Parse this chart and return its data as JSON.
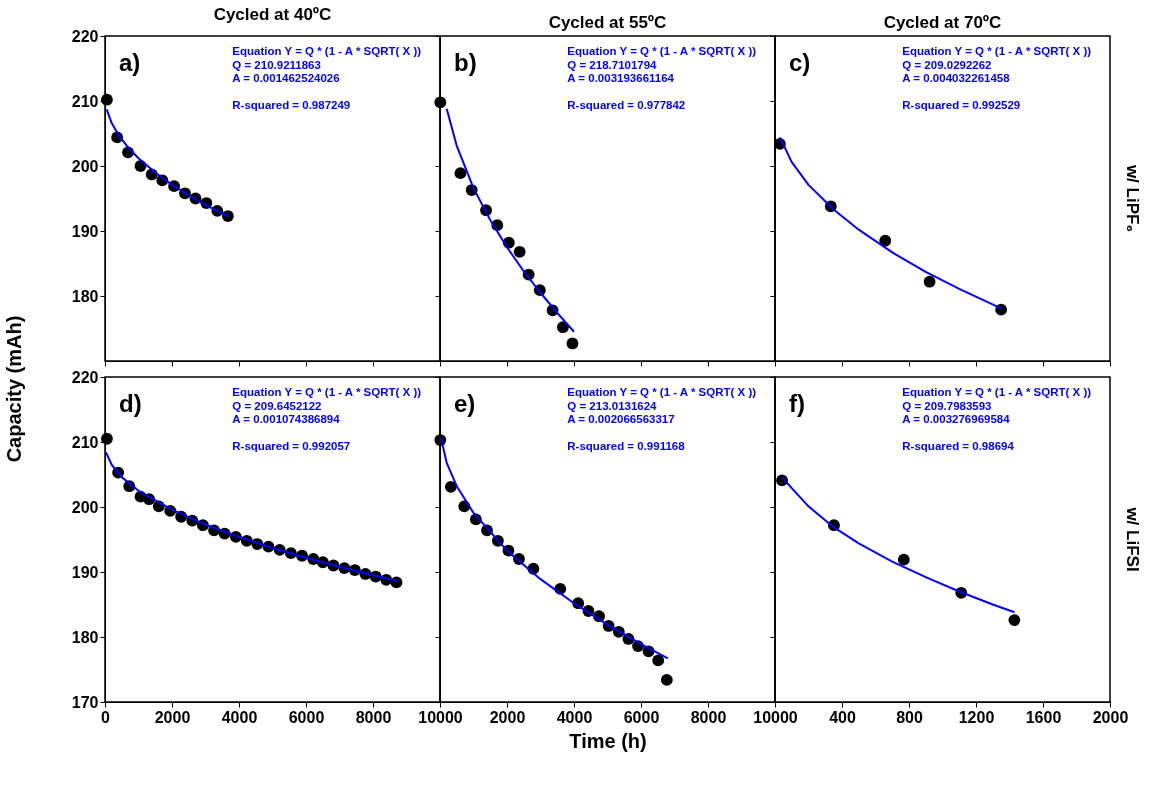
{
  "chart_data": [
    {
      "type": "scatter",
      "title": "Cycled at 40ºC",
      "ylabel": "Capacity (mAh)",
      "marker": "circle",
      "tick_labels": "y",
      "xlim": [
        0,
        10000
      ],
      "ylim": [
        170,
        220
      ],
      "xticks": [
        0,
        2000,
        4000,
        6000,
        8000,
        10000
      ],
      "yticks": [
        180,
        190,
        200,
        210,
        220
      ],
      "annotations": [
        "a)",
        "Equation Y = Q * (1 - A * SQRT( X ))",
        "Q = 210.9211863",
        "A = 0.001462524026",
        "R-squared = 0.987249"
      ],
      "series": [
        {
          "color": "#000000",
          "x": [
            57,
            363,
            688,
            1060,
            1395,
            1710,
            2063,
            2387,
            2702,
            3026,
            3352,
            3668
          ],
          "values": [
            210.2,
            204.4,
            202.1,
            200.0,
            198.7,
            197.8,
            196.9,
            195.8,
            195.0,
            194.3,
            193.1,
            192.3
          ]
        },
        {
          "type": "line",
          "marker": "none",
          "color": "#0000ff",
          "x": [
            50,
            200,
            400,
            700,
            1000,
            1500,
            2000,
            2500,
            3000,
            3500,
            3700
          ],
          "values": [
            208.7,
            206.6,
            204.8,
            202.8,
            201.2,
            199.0,
            197.1,
            195.5,
            194.0,
            192.7,
            192.2
          ]
        }
      ]
    },
    {
      "type": "scatter",
      "title": "Cycled at 55ºC",
      "marker": "circle",
      "tick_labels": false,
      "xlim": [
        0,
        10000
      ],
      "ylim": [
        170,
        220
      ],
      "xticks": [
        2000,
        4000,
        6000,
        8000,
        10000
      ],
      "yticks": [
        180,
        190,
        200,
        210,
        220
      ],
      "annotations": [
        "b)",
        "Equation Y = Q * (1 - A * SQRT( X ))",
        "Q = 218.7101794",
        "A = 0.003193661164",
        "R-squared = 0.977842"
      ],
      "series": [
        {
          "color": "#000000",
          "x": [
            10,
            610,
            946,
            1375,
            1710,
            2054,
            2378,
            2645,
            2980,
            3361,
            3668,
            3954
          ],
          "values": [
            209.8,
            198.9,
            196.3,
            193.2,
            190.9,
            188.2,
            186.8,
            183.3,
            180.9,
            177.8,
            175.2,
            172.7
          ]
        },
        {
          "type": "line",
          "marker": "none",
          "color": "#0000ff",
          "x": [
            200,
            500,
            1000,
            1500,
            2000,
            2500,
            3000,
            3500,
            4000
          ],
          "values": [
            208.8,
            203.1,
            196.6,
            191.7,
            187.5,
            183.8,
            180.5,
            177.4,
            174.5
          ]
        }
      ]
    },
    {
      "type": "scatter",
      "title": "Cycled at 70ºC",
      "y2label": "w/ LiPF₆",
      "marker": "circle",
      "tick_labels": false,
      "xlim": [
        0,
        2000
      ],
      "ylim": [
        170,
        220
      ],
      "xticks": [
        400,
        800,
        1200,
        1600,
        2000
      ],
      "yticks": [
        180,
        190,
        200,
        210,
        220
      ],
      "annotations": [
        "c)",
        "Equation Y = Q * (1 - A * SQRT( X ))",
        "Q = 209.0292262",
        "A = 0.004032261458",
        "R-squared = 0.992529"
      ],
      "series": [
        {
          "color": "#000000",
          "x": [
            29,
            333,
            658,
            923,
            1350
          ],
          "values": [
            203.4,
            193.8,
            188.5,
            182.2,
            177.9
          ]
        },
        {
          "type": "line",
          "marker": "none",
          "color": "#0000ff",
          "x": [
            30,
            100,
            200,
            350,
            500,
            700,
            900,
            1100,
            1350
          ],
          "values": [
            204.4,
            200.6,
            197.1,
            193.3,
            190.2,
            186.7,
            183.7,
            181.1,
            178.1
          ]
        }
      ]
    },
    {
      "type": "scatter",
      "marker": "circle",
      "xlim": [
        0,
        10000
      ],
      "ylim": [
        170,
        220
      ],
      "xticks": [
        0,
        2000,
        4000,
        6000,
        8000,
        10000
      ],
      "yticks": [
        170,
        180,
        190,
        200,
        210,
        220
      ],
      "annotations": [
        "d)",
        "Equation Y = Q * (1 - A * SQRT( X ))",
        "Q = 209.6452122",
        "A = 0.001074386894",
        "R-squared = 0.992057"
      ],
      "series": [
        {
          "color": "#000000",
          "x": [
            57,
            392,
            725,
            1060,
            1318,
            1605,
            1948,
            2273,
            2607,
            2923,
            3257,
            3572,
            3906,
            4232,
            4547,
            4880,
            5215,
            5550,
            5883,
            6218,
            6504,
            6819,
            7143,
            7459,
            7774,
            8080,
            8395,
            8701
          ],
          "values": [
            210.5,
            205.3,
            203.2,
            201.6,
            201.2,
            200.1,
            199.4,
            198.5,
            197.9,
            197.2,
            196.4,
            195.9,
            195.4,
            194.8,
            194.3,
            193.9,
            193.4,
            192.9,
            192.5,
            192.0,
            191.5,
            191.0,
            190.6,
            190.3,
            189.7,
            189.3,
            188.8,
            188.4
          ]
        },
        {
          "type": "line",
          "marker": "none",
          "color": "#0000ff",
          "x": [
            30,
            200,
            500,
            1000,
            2000,
            3000,
            4000,
            5000,
            6000,
            7000,
            8000,
            8750
          ],
          "values": [
            208.4,
            206.5,
            204.6,
            202.5,
            199.6,
            197.3,
            195.4,
            193.7,
            192.2,
            190.8,
            189.5,
            188.6
          ]
        }
      ]
    },
    {
      "type": "scatter",
      "xlabel": "Time (h)",
      "marker": "circle",
      "tick_labels": "x",
      "xlim": [
        0,
        10000
      ],
      "ylim": [
        170,
        220
      ],
      "xticks": [
        2000,
        4000,
        6000,
        8000,
        10000
      ],
      "yticks": [
        170,
        180,
        190,
        200,
        210,
        220
      ],
      "annotations": [
        "e)",
        "Equation Y = Q * (1 - A * SQRT( X ))",
        "Q = 213.0131624",
        "A = 0.002066563317",
        "R-squared = 0.991168"
      ],
      "series": [
        {
          "color": "#000000",
          "x": [
            10,
            324,
            725,
            1070,
            1404,
            1728,
            2043,
            2358,
            2788,
            3590,
            4126,
            4432,
            4748,
            5034,
            5338,
            5625,
            5911,
            6226,
            6513,
            6771
          ],
          "values": [
            210.3,
            203.1,
            200.1,
            198.1,
            196.4,
            194.8,
            193.3,
            192.0,
            190.5,
            187.4,
            185.2,
            184.0,
            183.2,
            181.7,
            180.8,
            179.7,
            178.6,
            177.8,
            176.4,
            173.4
          ]
        },
        {
          "type": "line",
          "marker": "none",
          "color": "#0000ff",
          "x": [
            30,
            200,
            500,
            1000,
            2000,
            3000,
            4000,
            5000,
            6000,
            6800
          ],
          "values": [
            210.6,
            206.8,
            203.2,
            199.1,
            193.3,
            188.9,
            185.2,
            181.9,
            178.9,
            176.7
          ]
        }
      ]
    },
    {
      "type": "scatter",
      "y2label": "w/ LiFSI",
      "marker": "circle",
      "tick_labels": "x",
      "xlim": [
        0,
        2000
      ],
      "ylim": [
        170,
        220
      ],
      "xticks": [
        400,
        800,
        1200,
        1600,
        2000
      ],
      "yticks": [
        170,
        180,
        190,
        200,
        210,
        220
      ],
      "annotations": [
        "f)",
        "Equation Y = Q * (1 - A * SQRT( X ))",
        "Q = 209.7983593",
        "A = 0.003276969584",
        "R-squared = 0.98694"
      ],
      "series": [
        {
          "color": "#000000",
          "x": [
            42,
            352,
            769,
            1112,
            1429
          ],
          "values": [
            204.1,
            197.2,
            191.9,
            186.8,
            182.6
          ]
        },
        {
          "type": "line",
          "marker": "none",
          "color": "#0000ff",
          "x": [
            42,
            100,
            200,
            350,
            500,
            700,
            900,
            1100,
            1300,
            1430
          ],
          "values": [
            204.6,
            202.9,
            200.1,
            196.9,
            194.4,
            191.6,
            189.2,
            187.0,
            185.0,
            183.8
          ]
        }
      ]
    }
  ]
}
